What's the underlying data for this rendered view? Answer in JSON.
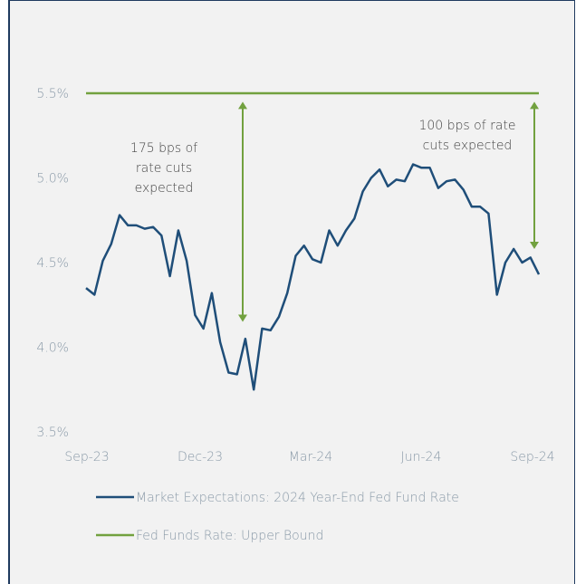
{
  "chart_data": {
    "type": "line",
    "yticks": [
      "5.5%",
      "5.0%",
      "4.5%",
      "4.0%",
      "3.5%"
    ],
    "ytick_values": [
      5.5,
      5.0,
      4.5,
      4.0,
      3.5
    ],
    "xticks": [
      "Sep-23",
      "Dec-23",
      "Mar-24",
      "Jun-24",
      "Sep-24"
    ],
    "ylim": [
      3.5,
      5.5
    ],
    "grid": false,
    "legend_position": "bottom",
    "series": [
      {
        "name": "Market Expectations: 2024 Year-End Fed Fund Rate",
        "color": "#1f4e79",
        "values": [
          4.35,
          4.31,
          4.51,
          4.61,
          4.78,
          4.72,
          4.72,
          4.7,
          4.71,
          4.66,
          4.42,
          4.69,
          4.51,
          4.19,
          4.11,
          4.32,
          4.03,
          3.85,
          3.84,
          4.05,
          3.75,
          4.11,
          4.1,
          4.18,
          4.32,
          4.54,
          4.6,
          4.52,
          4.5,
          4.69,
          4.6,
          4.69,
          4.76,
          4.92,
          5.0,
          5.05,
          4.95,
          4.99,
          4.98,
          5.08,
          5.06,
          5.06,
          4.94,
          4.98,
          4.99,
          4.93,
          4.83,
          4.83,
          4.79,
          4.31,
          4.5,
          4.58,
          4.5,
          4.53,
          4.43
        ]
      },
      {
        "name": "Fed Funds Rate: Upper Bound",
        "color": "#72a13f",
        "values": [
          5.5,
          5.5
        ]
      }
    ],
    "annotations": [
      {
        "lines": [
          "175 bps of",
          "rate cuts",
          "expected"
        ],
        "from": 5.45,
        "to": 4.15
      },
      {
        "lines": [
          "100 bps of rate",
          "cuts expected"
        ],
        "from": 5.45,
        "to": 4.58
      }
    ]
  }
}
